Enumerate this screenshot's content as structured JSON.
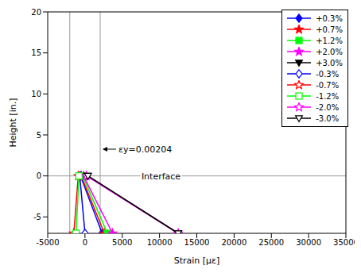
{
  "chart_data": {
    "type": "line",
    "x_label": "Strain [με]",
    "y_label": "Height [in.]",
    "xlim": [
      -5000,
      35000
    ],
    "xticks": [
      -5000,
      0,
      5000,
      10000,
      15000,
      20000,
      25000,
      30000,
      35000
    ],
    "ylim": [
      -7,
      20
    ],
    "yticks": [
      -5,
      0,
      5,
      10,
      15,
      20
    ],
    "grid": false,
    "legend": "upper right",
    "reference_lines": [
      {
        "x": -2040
      },
      {
        "x": 2040,
        "label": "εy=0.00204"
      },
      {
        "y": 0,
        "label": "Interface"
      }
    ],
    "series": [
      {
        "name": "+0.3%",
        "color": "#0000ff",
        "marker": "diamond",
        "x": [
          -600,
          2300
        ],
        "y": [
          0,
          -7
        ]
      },
      {
        "name": "+0.7%",
        "color": "#ff0000",
        "marker": "star",
        "x": [
          -500,
          2600
        ],
        "y": [
          0,
          -7
        ]
      },
      {
        "name": "+1.2%",
        "color": "#00ff00",
        "marker": "square",
        "x": [
          -300,
          3000
        ],
        "y": [
          0,
          -7
        ]
      },
      {
        "name": "+2.0%",
        "color": "#ff00ff",
        "marker": "star",
        "x": [
          -200,
          3700
        ],
        "y": [
          0,
          -7
        ]
      },
      {
        "name": "+3.0%",
        "color": "#000000",
        "marker": "triangle-down",
        "x": [
          300,
          12500
        ],
        "y": [
          0,
          -7
        ]
      },
      {
        "name": "-0.3%",
        "color": "#0000ff",
        "marker": "diamond-open",
        "x": [
          -700,
          0
        ],
        "y": [
          0,
          -7
        ]
      },
      {
        "name": "-0.7%",
        "color": "#ff0000",
        "marker": "star-open",
        "x": [
          -900,
          -1500
        ],
        "y": [
          0,
          -7
        ]
      },
      {
        "name": "-1.2%",
        "color": "#00ff00",
        "marker": "square-open",
        "x": [
          -800,
          -1200
        ],
        "y": [
          0,
          -7
        ]
      },
      {
        "name": "-2.0%",
        "color": "#ff00ff",
        "marker": "star-open",
        "x": [
          200,
          12500
        ],
        "y": [
          0,
          -7
        ]
      },
      {
        "name": "-3.0%",
        "color": "#000000",
        "marker": "triangle-down-open",
        "x": [
          400,
          12500
        ],
        "y": [
          0,
          -7
        ]
      }
    ]
  }
}
